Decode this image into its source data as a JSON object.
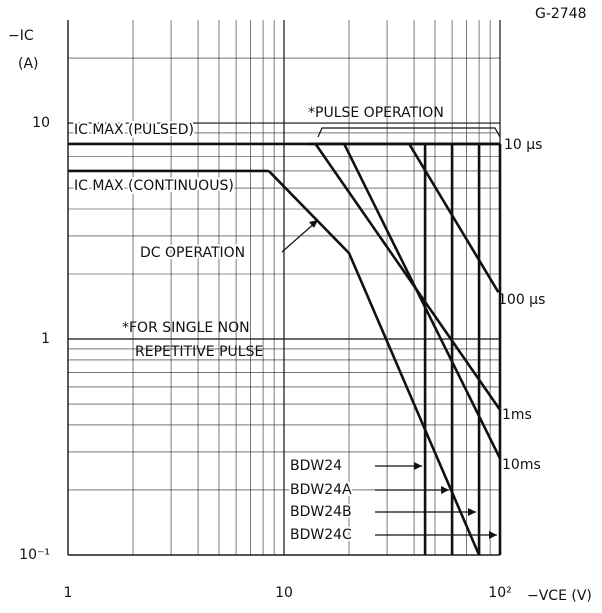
{
  "chart_data": {
    "type": "line",
    "figure_code": "G-2748",
    "y_label": "−IC",
    "y_unit": "(A)",
    "x_label": "−VCE (V)",
    "xlim": [
      1,
      100
    ],
    "ylim": [
      0.1,
      30
    ],
    "log_x": true,
    "log_y": true,
    "xticks": [
      1,
      10,
      {
        "value": 100,
        "label": "10²"
      }
    ],
    "yticks": [
      {
        "value": 0.1,
        "label": "10⁻¹"
      },
      1,
      10
    ],
    "grid": true,
    "minor_grid": true,
    "color": "#111111",
    "annotations": [
      "*PULSE OPERATION",
      "*FOR SINGLE NON",
      "REPETITIVE PULSE"
    ],
    "series": [
      {
        "name": "IC MAX (PULSED)",
        "x": [
          1,
          100
        ],
        "values": [
          8,
          8
        ]
      },
      {
        "name": "IC MAX (CONTINUOUS)",
        "x": [
          1,
          8.5
        ],
        "values": [
          6,
          6
        ]
      },
      {
        "name": "DC OPERATION",
        "x": [
          8.5,
          20,
          80
        ],
        "values": [
          6,
          2.5,
          0.1
        ]
      },
      {
        "name": "10 μs",
        "x": [
          13,
          100
        ],
        "values": [
          8,
          8
        ]
      },
      {
        "name": "100 μs",
        "x": [
          38,
          100
        ],
        "values": [
          8,
          1.6
        ]
      },
      {
        "name": "1ms",
        "x": [
          14,
          100
        ],
        "values": [
          8,
          0.47
        ]
      },
      {
        "name": "10ms",
        "x": [
          19,
          100
        ],
        "values": [
          8,
          0.28
        ]
      },
      {
        "name": "BDW24",
        "x": [
          45,
          45
        ],
        "values": [
          8,
          0.1
        ]
      },
      {
        "name": "BDW24A",
        "x": [
          60,
          60
        ],
        "values": [
          8,
          0.1
        ]
      },
      {
        "name": "BDW24B",
        "x": [
          80,
          80
        ],
        "values": [
          8,
          0.1
        ]
      },
      {
        "name": "BDW24C",
        "x": [
          100,
          100
        ],
        "values": [
          8,
          0.1
        ]
      }
    ]
  }
}
